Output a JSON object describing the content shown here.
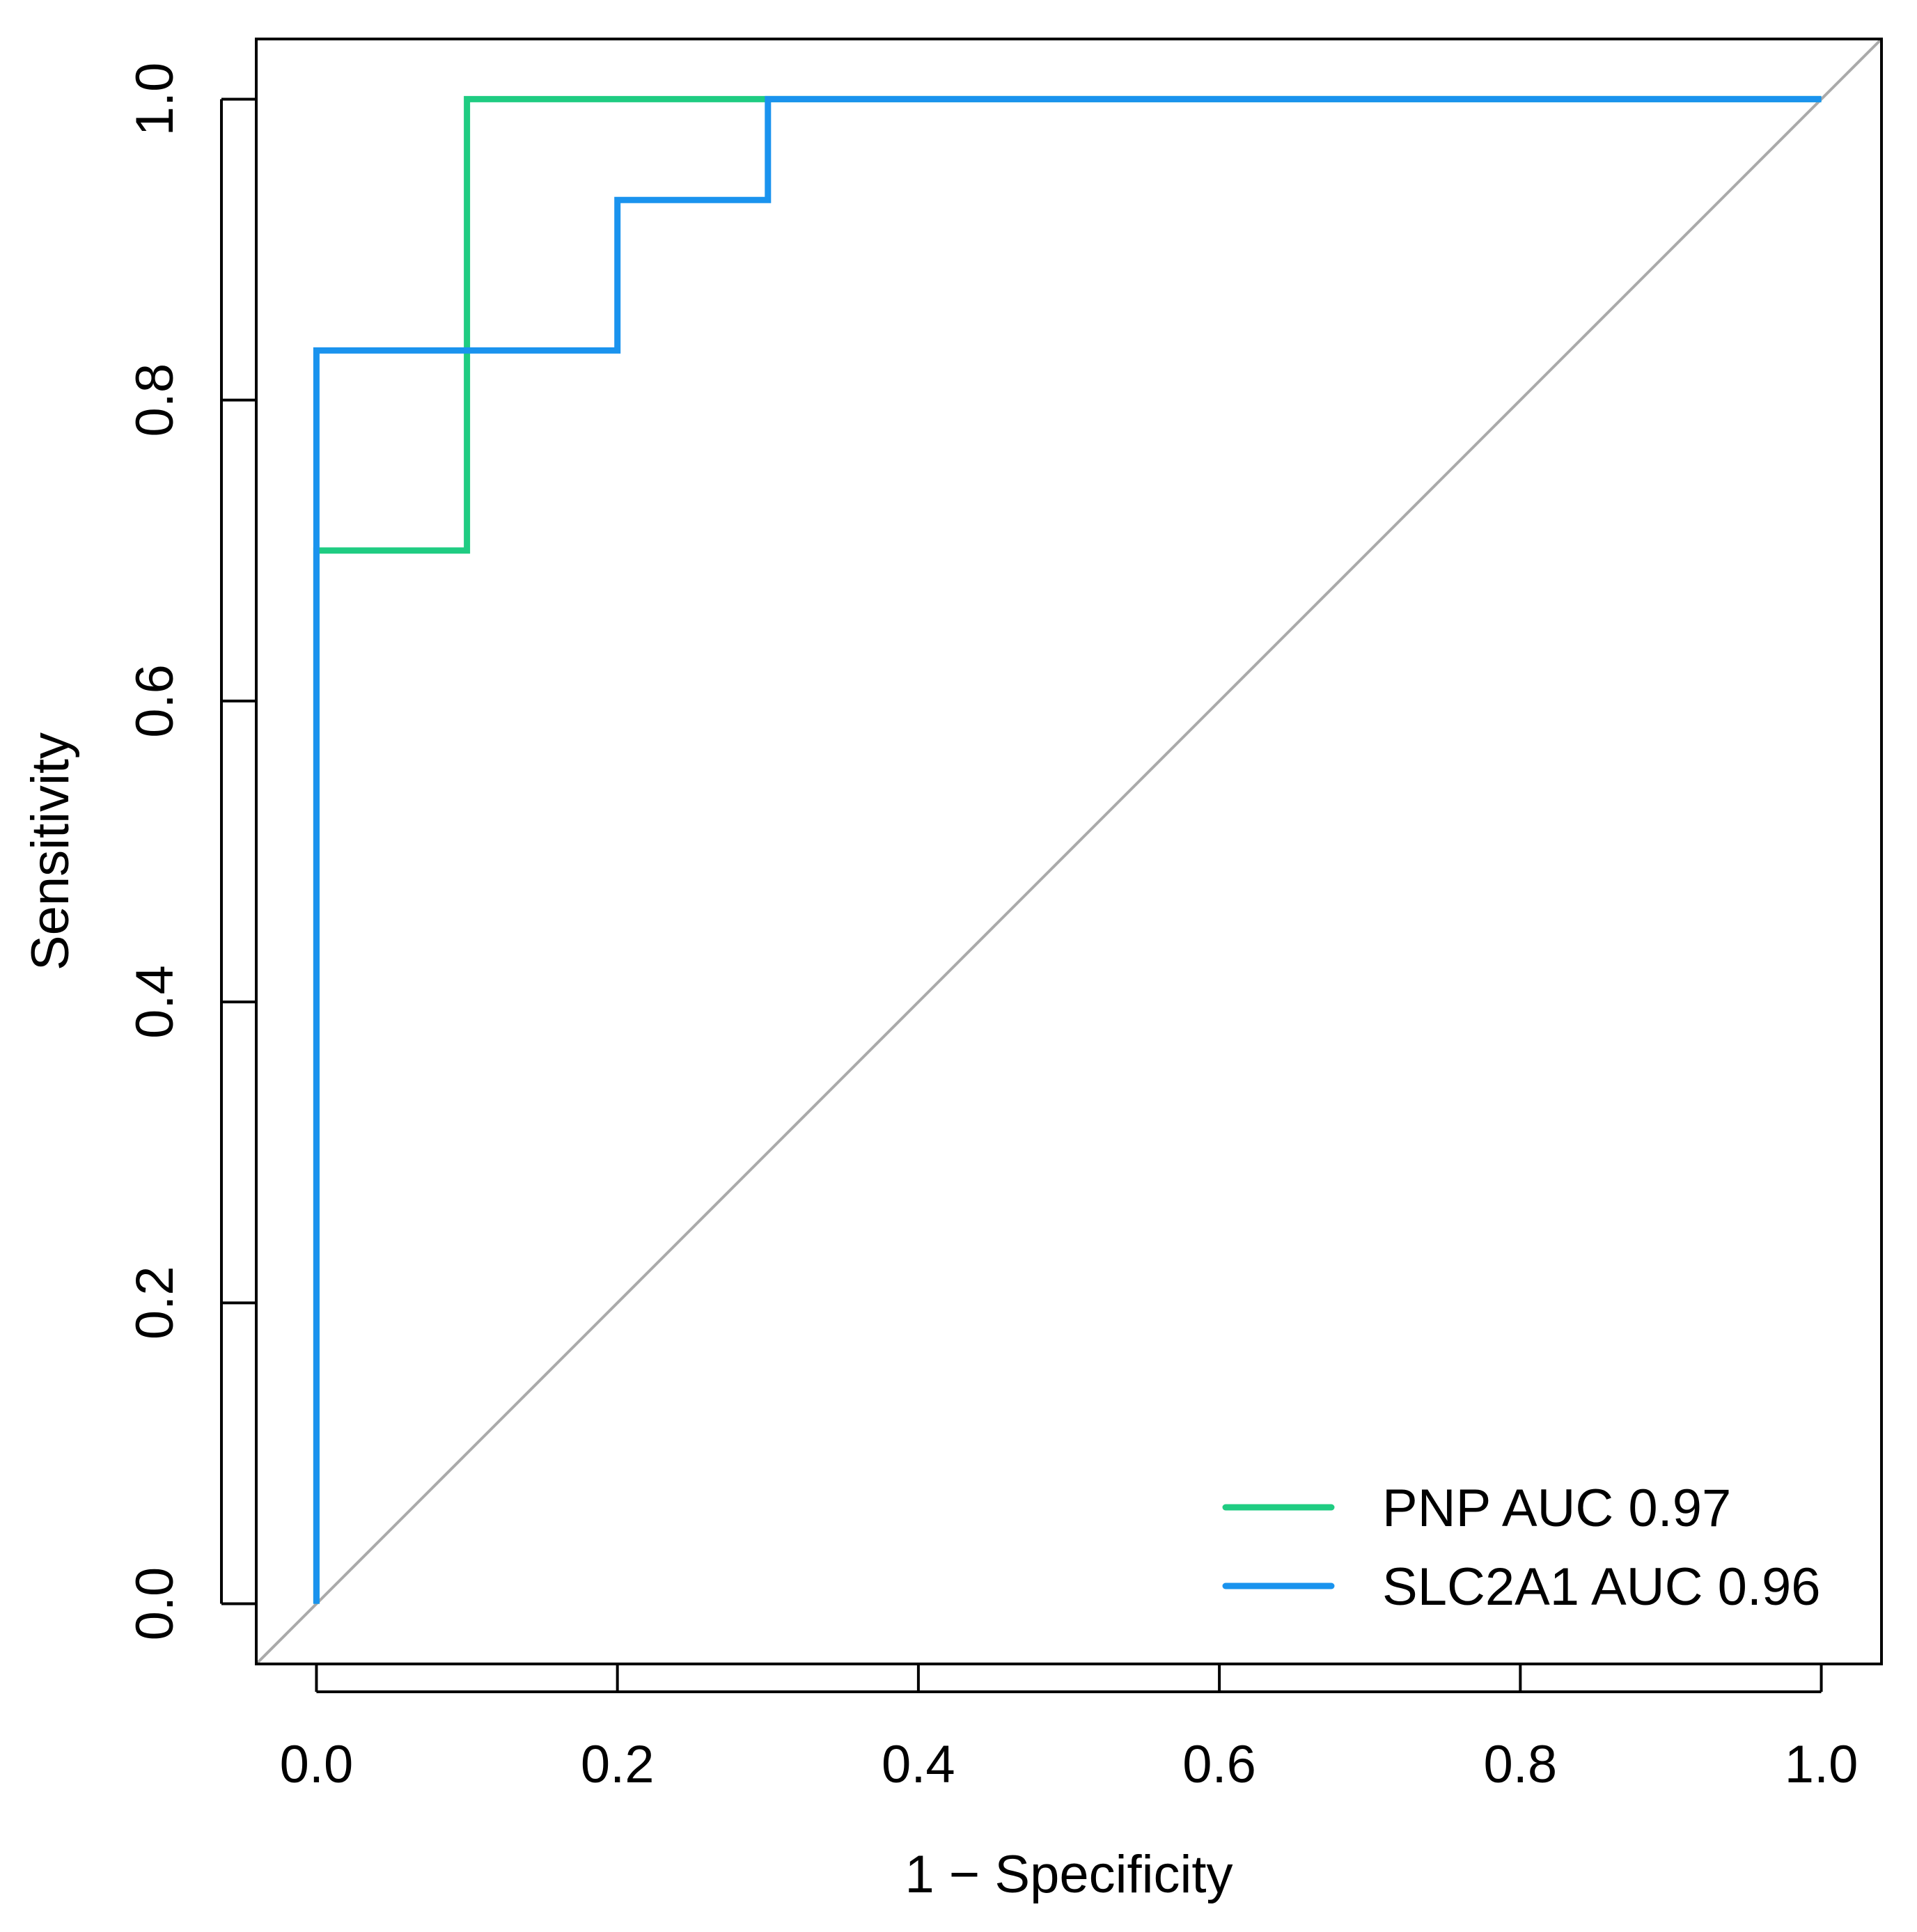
{
  "chart_data": {
    "type": "line",
    "title": "",
    "xlabel": "1 − Specificity",
    "ylabel": "Sensitivity",
    "xlim": [
      -0.04,
      1.04
    ],
    "ylim": [
      -0.04,
      1.04
    ],
    "x_ticks": [
      0.0,
      0.2,
      0.4,
      0.6,
      0.8,
      1.0
    ],
    "y_ticks": [
      0.0,
      0.2,
      0.4,
      0.6,
      0.8,
      1.0
    ],
    "x_tick_labels": [
      "0.0",
      "0.2",
      "0.4",
      "0.6",
      "0.8",
      "1.0"
    ],
    "y_tick_labels": [
      "0.0",
      "0.2",
      "0.4",
      "0.6",
      "0.8",
      "1.0"
    ],
    "grid": false,
    "legend_position": "bottom-right",
    "reference_line": {
      "x": [
        0,
        1
      ],
      "y": [
        0,
        1
      ],
      "color": "#aaaaaa"
    },
    "series": [
      {
        "name": "PNP AUC 0.97",
        "color": "#1fcc82",
        "x": [
          0.0,
          0.0,
          0.1,
          0.1,
          0.3,
          1.0
        ],
        "y": [
          0.0,
          0.7,
          0.7,
          1.0,
          1.0,
          1.0
        ]
      },
      {
        "name": "SLC2A1 AUC 0.96",
        "color": "#1a93ee",
        "x": [
          0.0,
          0.0,
          0.2,
          0.2,
          0.3,
          0.3,
          1.0
        ],
        "y": [
          0.0,
          0.833,
          0.833,
          0.933,
          0.933,
          1.0,
          1.0
        ]
      }
    ]
  }
}
